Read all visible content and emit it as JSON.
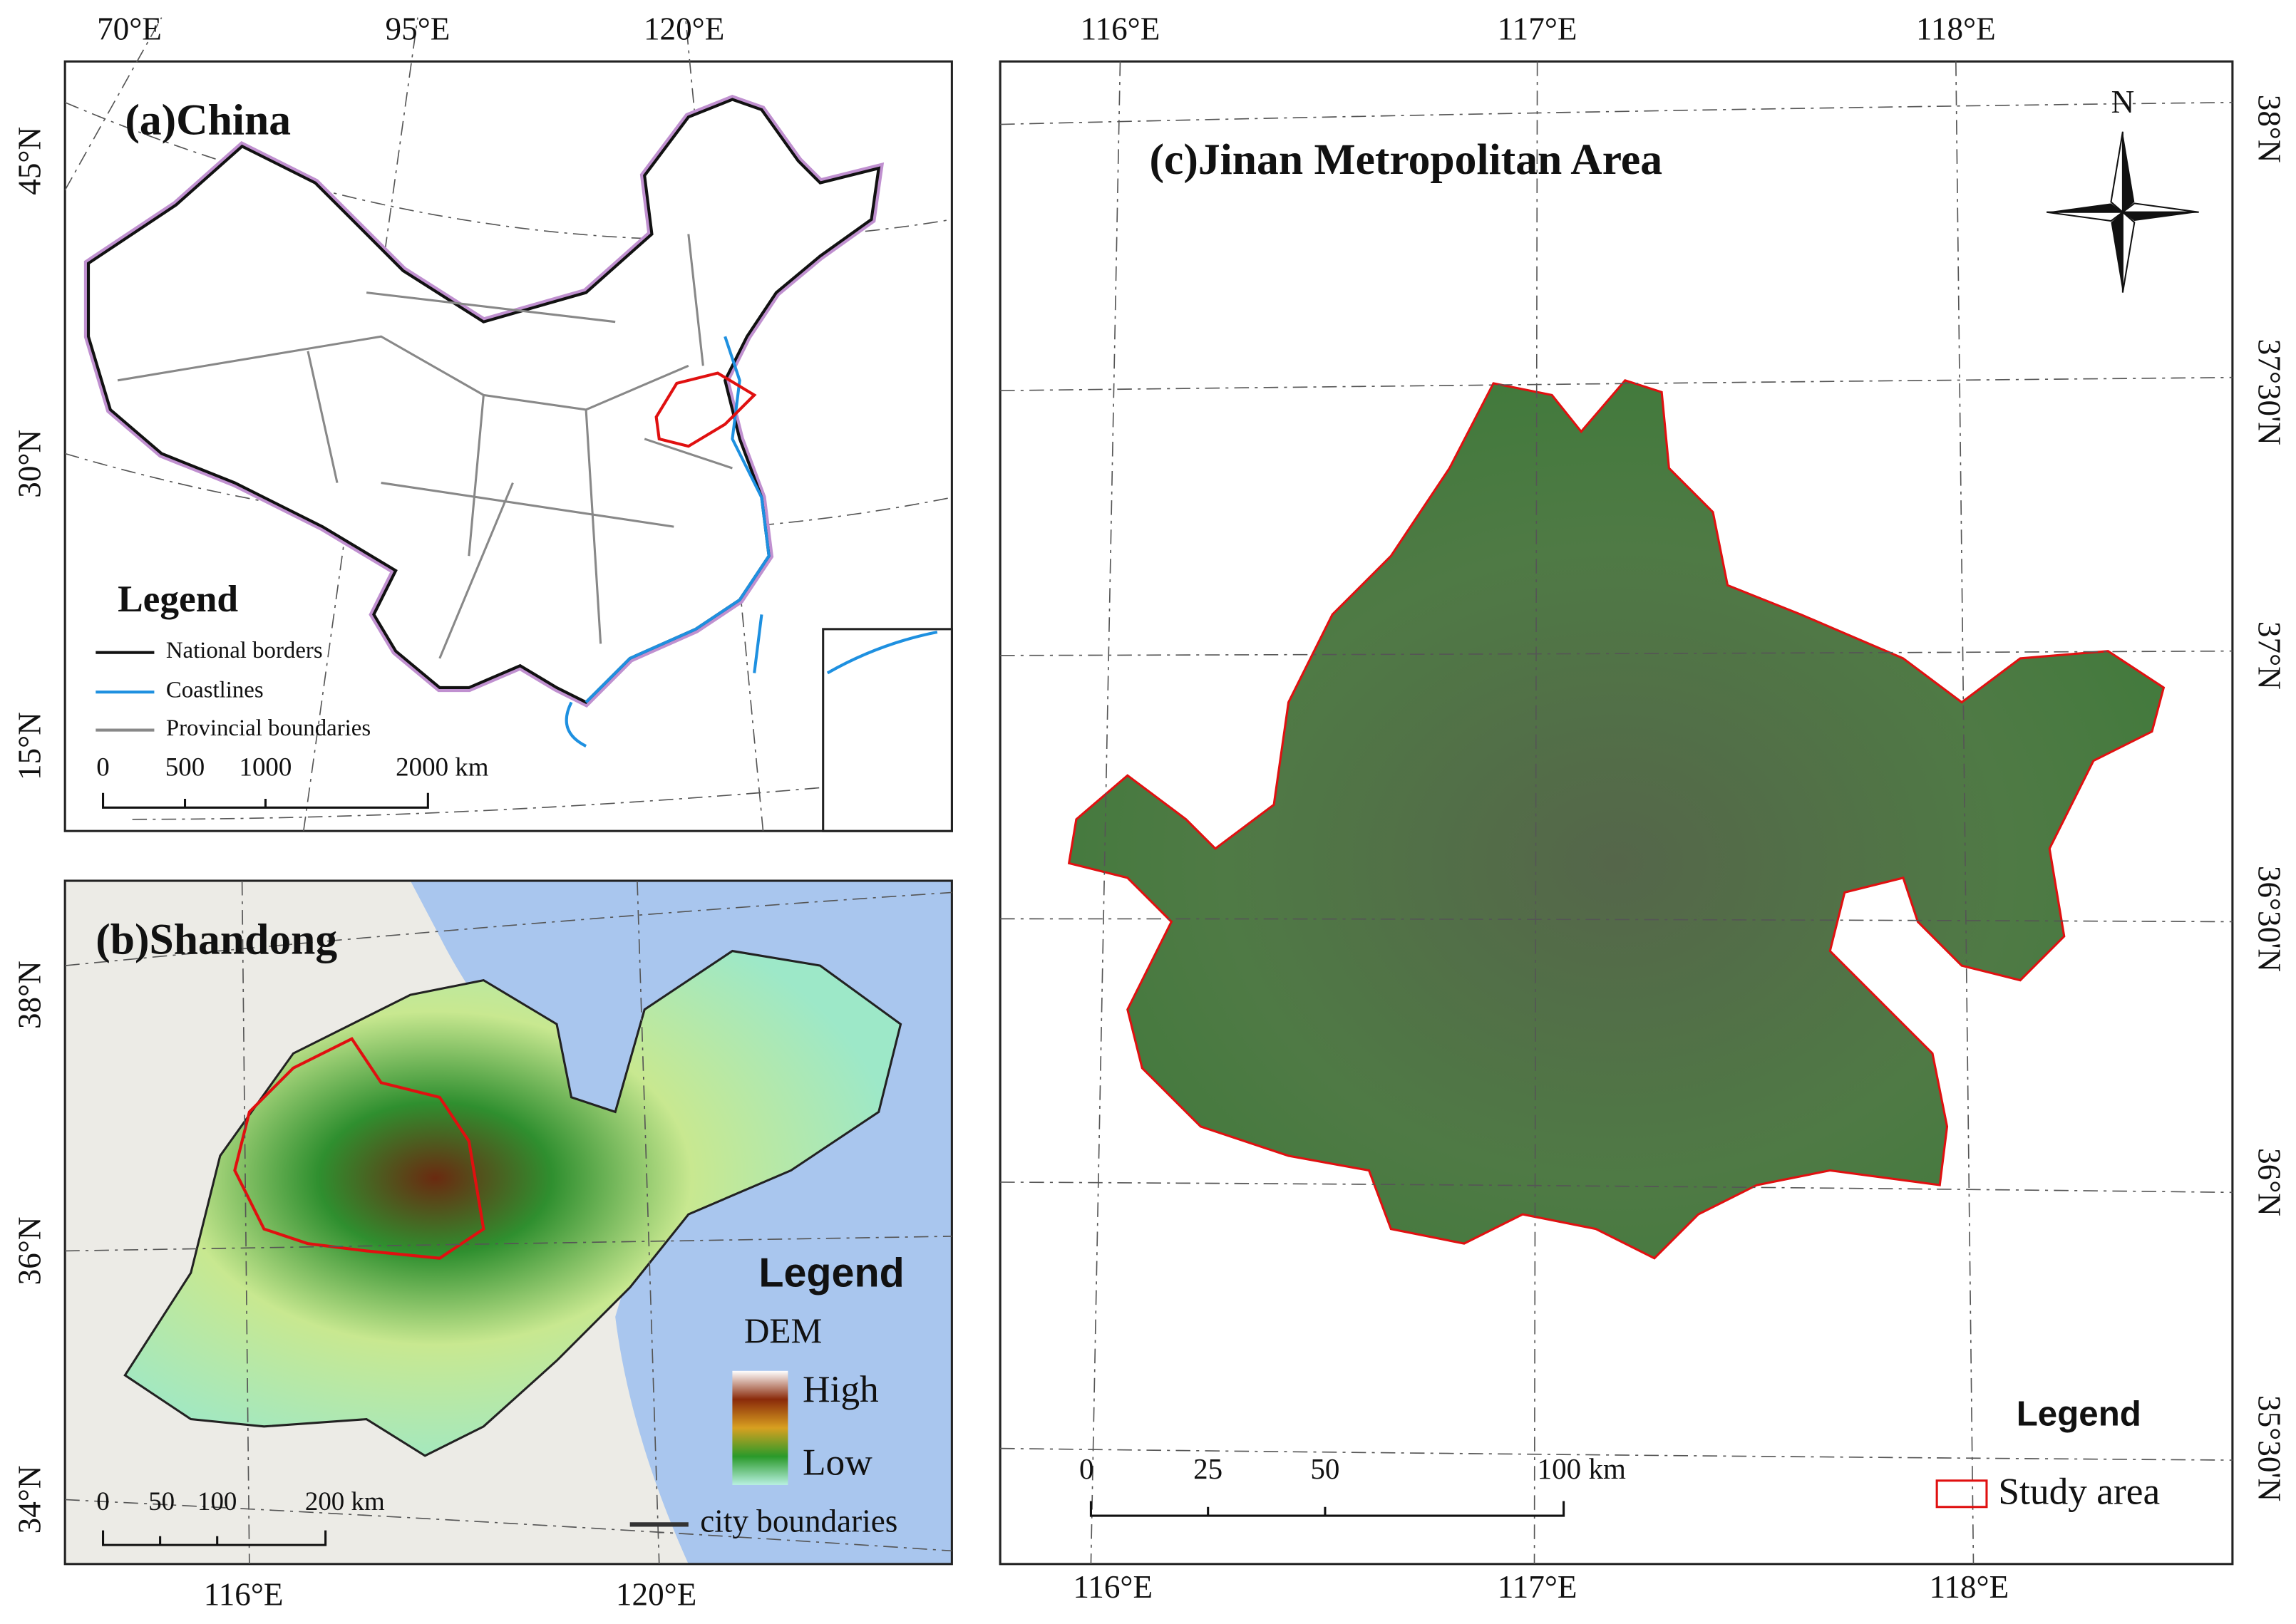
{
  "panel_a": {
    "title": "(a)China",
    "lon_labels": [
      "70°E",
      "95°E",
      "120°E"
    ],
    "lat_labels": [
      "45°N",
      "30°N",
      "15°N"
    ],
    "legend": {
      "title": "Legend",
      "items": [
        "National borders",
        "Coastlines",
        "Provincial boundaries"
      ]
    },
    "scale": [
      "0",
      "500",
      "1000",
      "2000 km"
    ]
  },
  "panel_b": {
    "title": "(b)Shandong",
    "lon_labels": [
      "116°E",
      "120°E"
    ],
    "lat_labels": [
      "38°N",
      "36°N",
      "34°N"
    ],
    "legend": {
      "title": "Legend",
      "dem": "DEM",
      "high": "High",
      "low": "Low",
      "boundary": "city boundaries"
    },
    "scale": [
      "0",
      "50",
      "100",
      "200 km"
    ]
  },
  "panel_c": {
    "title": "(c)Jinan Metropolitan Area",
    "north": "N",
    "lon_labels": [
      "116°E",
      "117°E",
      "118°E"
    ],
    "lat_labels": [
      "38°N",
      "37°30'N",
      "37°N",
      "36°30'N",
      "36°N",
      "35°30'N"
    ],
    "legend": {
      "title": "Legend",
      "item": "Study area"
    },
    "scale": [
      "0",
      "25",
      "50",
      "100 km"
    ]
  }
}
